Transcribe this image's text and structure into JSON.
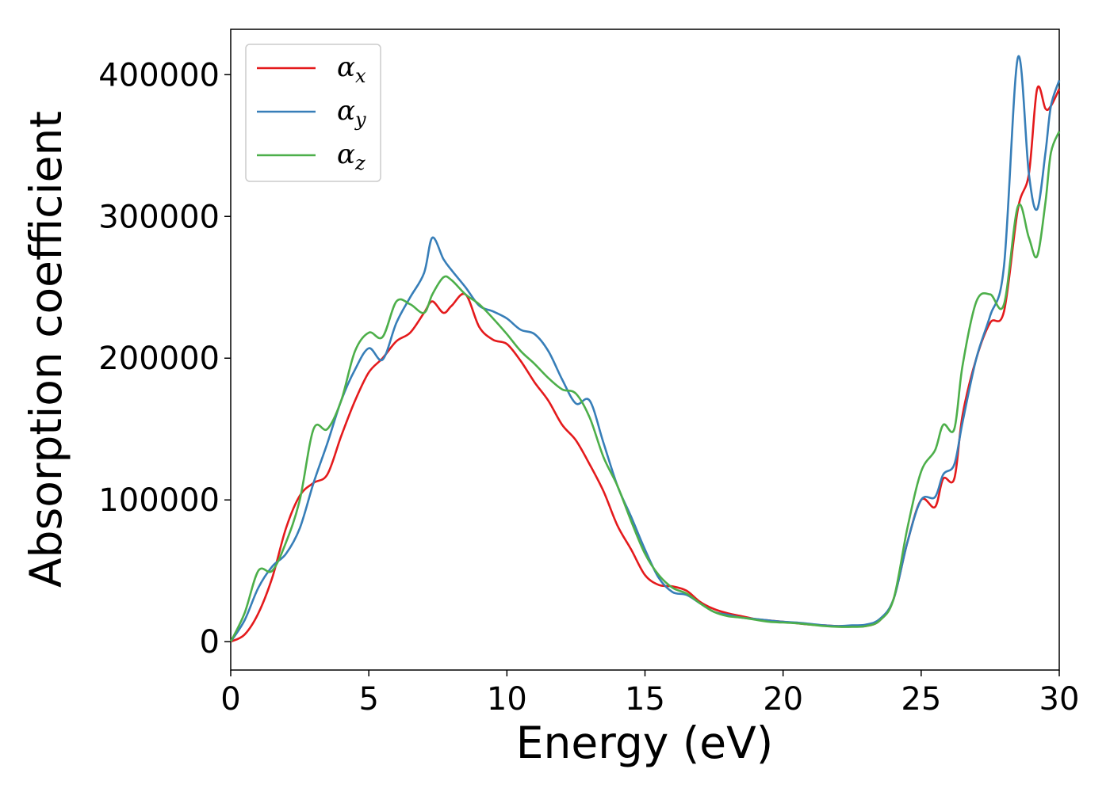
{
  "chart_data": {
    "type": "line",
    "xlabel": "Energy (eV)",
    "ylabel": "Absorption coefficient",
    "xlim": [
      0,
      30
    ],
    "ylim": [
      -20000,
      432000
    ],
    "xticks": [
      0,
      5,
      10,
      15,
      20,
      25,
      30
    ],
    "xtick_labels": [
      "0",
      "5",
      "10",
      "15",
      "20",
      "25",
      "30"
    ],
    "yticks": [
      0,
      100000,
      200000,
      300000,
      400000
    ],
    "ytick_labels": [
      "0",
      "100000",
      "200000",
      "300000",
      "400000"
    ],
    "grid": false,
    "legend_position": "top-left",
    "series": [
      {
        "name": "α",
        "subscript": "x",
        "color": "#e41a1c",
        "x": [
          0,
          0.5,
          1,
          1.5,
          2,
          2.5,
          3,
          3.5,
          4,
          4.5,
          5,
          5.5,
          6,
          6.5,
          7,
          7.3,
          7.7,
          8,
          8.5,
          9,
          9.5,
          10,
          10.5,
          11,
          11.5,
          12,
          12.5,
          13,
          13.5,
          14,
          14.5,
          15,
          15.5,
          16,
          16.5,
          17,
          17.5,
          18,
          18.5,
          19,
          19.5,
          20,
          20.5,
          21,
          21.5,
          22,
          22.5,
          23,
          23.5,
          24,
          24.5,
          25,
          25.5,
          25.8,
          26.2,
          26.5,
          27,
          27.5,
          28,
          28.5,
          28.9,
          29.2,
          29.5,
          29.7,
          30
        ],
        "values": [
          0,
          5000,
          20000,
          45000,
          80000,
          103000,
          112000,
          118000,
          145000,
          170000,
          190000,
          200000,
          212000,
          218000,
          232000,
          240000,
          232000,
          237000,
          245000,
          222000,
          213000,
          210000,
          198000,
          183000,
          170000,
          153000,
          142000,
          125000,
          106000,
          82000,
          65000,
          47000,
          40000,
          39000,
          36000,
          28000,
          23000,
          20000,
          18000,
          16000,
          15000,
          14000,
          13000,
          12000,
          11500,
          11000,
          11000,
          11000,
          15000,
          30000,
          70000,
          100000,
          95000,
          115000,
          115000,
          160000,
          200000,
          225000,
          233000,
          305000,
          330000,
          390000,
          376000,
          378000,
          390000
        ]
      },
      {
        "name": "α",
        "subscript": "y",
        "color": "#377eb8",
        "x": [
          0,
          0.5,
          1,
          1.5,
          2,
          2.5,
          3,
          3.5,
          4,
          4.5,
          5,
          5.5,
          6,
          6.5,
          7,
          7.3,
          7.7,
          8,
          8.5,
          9,
          9.5,
          10,
          10.5,
          11,
          11.5,
          12,
          12.5,
          13,
          13.5,
          14,
          14.5,
          15,
          15.5,
          16,
          16.5,
          17,
          17.5,
          18,
          18.5,
          19,
          19.5,
          20,
          20.5,
          21,
          21.5,
          22,
          22.5,
          23,
          23.5,
          24,
          24.5,
          25,
          25.5,
          25.8,
          26.2,
          26.5,
          27,
          27.5,
          28,
          28.5,
          28.9,
          29.2,
          29.5,
          29.7,
          30
        ],
        "values": [
          0,
          15000,
          38000,
          53000,
          62000,
          80000,
          112000,
          140000,
          170000,
          192000,
          207000,
          199000,
          225000,
          243000,
          260000,
          285000,
          270000,
          262000,
          250000,
          237000,
          233000,
          228000,
          220000,
          217000,
          205000,
          185000,
          168000,
          170000,
          140000,
          110000,
          88000,
          65000,
          45000,
          35000,
          33000,
          27000,
          21000,
          19000,
          17000,
          16000,
          15000,
          14000,
          13500,
          12500,
          11500,
          11000,
          11500,
          12000,
          16000,
          30000,
          70000,
          100000,
          102000,
          118000,
          125000,
          155000,
          200000,
          230000,
          265000,
          412000,
          330000,
          305000,
          345000,
          378000,
          396000
        ]
      },
      {
        "name": "α",
        "subscript": "z",
        "color": "#4daf4a",
        "x": [
          0,
          0.5,
          1,
          1.5,
          2,
          2.5,
          3,
          3.5,
          4,
          4.5,
          5,
          5.5,
          6,
          6.5,
          7,
          7.3,
          7.7,
          8,
          8.5,
          9,
          9.5,
          10,
          10.5,
          11,
          11.5,
          12,
          12.5,
          13,
          13.5,
          14,
          14.5,
          15,
          15.5,
          16,
          16.5,
          17,
          17.5,
          18,
          18.5,
          19,
          19.5,
          20,
          20.5,
          21,
          21.5,
          22,
          22.5,
          23,
          23.5,
          24,
          24.5,
          25,
          25.5,
          25.8,
          26.2,
          26.5,
          27,
          27.5,
          28,
          28.5,
          28.9,
          29.2,
          29.5,
          29.7,
          30
        ],
        "values": [
          0,
          20000,
          50000,
          50000,
          70000,
          100000,
          150000,
          150000,
          170000,
          205000,
          218000,
          215000,
          240000,
          238000,
          232000,
          245000,
          257000,
          255000,
          245000,
          238000,
          228000,
          217000,
          205000,
          196000,
          186000,
          178000,
          175000,
          158000,
          130000,
          110000,
          85000,
          62000,
          47000,
          38000,
          34000,
          27000,
          21000,
          18000,
          17000,
          15500,
          14000,
          13500,
          13000,
          12000,
          11000,
          10500,
          10500,
          11000,
          15000,
          30000,
          80000,
          120000,
          135000,
          153000,
          150000,
          195000,
          240000,
          245000,
          238000,
          307000,
          285000,
          272000,
          310000,
          345000,
          360000
        ]
      }
    ]
  }
}
